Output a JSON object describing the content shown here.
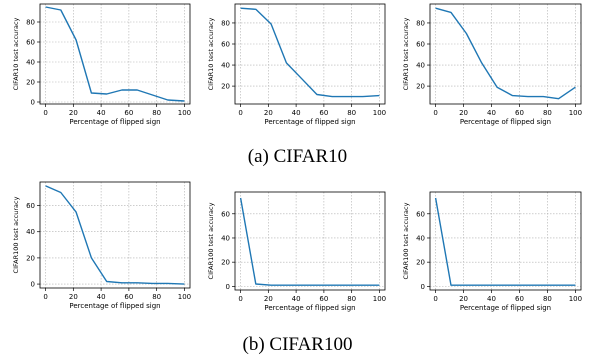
{
  "captions": {
    "a": "(a)  CIFAR10",
    "b": "(b)  CIFAR100"
  },
  "colors": {
    "line": "#1f77b4",
    "grid": "#b0b0b0",
    "axis": "#000000"
  },
  "chart_data": [
    {
      "type": "line",
      "ylabel": "CIFAR10 test accuracy",
      "xlabel": "Percentage of flipped sign",
      "xlim": [
        -4,
        104
      ],
      "ylim": [
        -2,
        98
      ],
      "xticks": [
        0,
        20,
        40,
        60,
        80,
        100
      ],
      "yticks": [
        0,
        20,
        40,
        60,
        80
      ],
      "grid": true,
      "x": [
        0,
        11,
        22,
        33,
        44,
        55,
        66,
        77,
        88,
        100
      ],
      "y": [
        95,
        92,
        62,
        9,
        8,
        12,
        12,
        7,
        2,
        1
      ]
    },
    {
      "type": "line",
      "ylabel": "CIFAR10 test accuracy",
      "xlabel": "Percentage of flipped sign",
      "xlim": [
        -4,
        104
      ],
      "ylim": [
        3,
        98
      ],
      "xticks": [
        0,
        20,
        40,
        60,
        80,
        100
      ],
      "yticks": [
        20,
        40,
        60,
        80
      ],
      "grid": true,
      "x": [
        0,
        11,
        22,
        33,
        44,
        55,
        66,
        77,
        88,
        100
      ],
      "y": [
        94,
        93,
        79,
        42,
        27,
        12,
        10,
        10,
        10,
        11
      ]
    },
    {
      "type": "line",
      "ylabel": "CIFAR10 test accuracy",
      "xlabel": "Percentage of flipped sign",
      "xlim": [
        -4,
        104
      ],
      "ylim": [
        3,
        98
      ],
      "xticks": [
        0,
        20,
        40,
        60,
        80,
        100
      ],
      "yticks": [
        20,
        40,
        60,
        80
      ],
      "grid": true,
      "x": [
        0,
        11,
        22,
        33,
        44,
        55,
        66,
        77,
        88,
        100
      ],
      "y": [
        94,
        90,
        70,
        42,
        19,
        11,
        10,
        10,
        8,
        19
      ]
    },
    {
      "type": "line",
      "ylabel": "CIFAR100 test accuracy",
      "xlabel": "Percentage of flipped sign",
      "xlim": [
        -4,
        104
      ],
      "ylim": [
        -3,
        78
      ],
      "xticks": [
        0,
        20,
        40,
        60,
        80,
        100
      ],
      "yticks": [
        0,
        20,
        40,
        60
      ],
      "grid": true,
      "x": [
        0,
        11,
        22,
        33,
        44,
        55,
        66,
        77,
        88,
        100
      ],
      "y": [
        75,
        70,
        55,
        20,
        2,
        1,
        1,
        0.5,
        0.5,
        0
      ]
    },
    {
      "type": "line",
      "ylabel": "CIFAR100 test accuracy",
      "xlabel": "Percentage of flipped sign",
      "xlim": [
        -4,
        104
      ],
      "ylim": [
        -3,
        78
      ],
      "xticks": [
        0,
        20,
        40,
        60,
        80,
        100
      ],
      "yticks": [
        0,
        20,
        40,
        60
      ],
      "grid": true,
      "x": [
        0,
        11,
        22,
        33,
        44,
        55,
        66,
        77,
        88,
        100
      ],
      "y": [
        73,
        2,
        1,
        1,
        1,
        1,
        1,
        1,
        1,
        1
      ]
    },
    {
      "type": "line",
      "ylabel": "CIFAR100 test accuracy",
      "xlabel": "Percentage of flipped sign",
      "xlim": [
        -4,
        104
      ],
      "ylim": [
        -3,
        78
      ],
      "xticks": [
        0,
        20,
        40,
        60,
        80,
        100
      ],
      "yticks": [
        0,
        20,
        40,
        60
      ],
      "grid": true,
      "x": [
        0,
        11,
        22,
        33,
        44,
        55,
        66,
        77,
        88,
        100
      ],
      "y": [
        73,
        1,
        1,
        1,
        1,
        1,
        1,
        1,
        1,
        1
      ]
    }
  ]
}
